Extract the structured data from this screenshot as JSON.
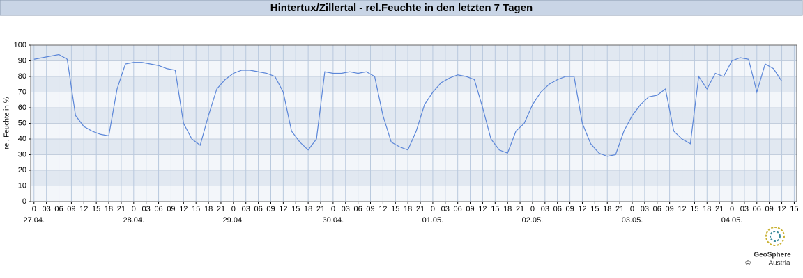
{
  "chart_data": {
    "type": "line",
    "title": "Hintertux/Zillertal - rel.Feuchte in den letzten 7 Tagen",
    "y_label": "rel. Feuchte in %",
    "color": "#5b86d8",
    "grid": true,
    "x": [
      0,
      2,
      4,
      6,
      8,
      10,
      12,
      14,
      16,
      18,
      20,
      22,
      24,
      26,
      28,
      30,
      32,
      34,
      36,
      38,
      40,
      42,
      44,
      46,
      48,
      50,
      52,
      54,
      56,
      58,
      60,
      62,
      64,
      66,
      68,
      70,
      72,
      74,
      76,
      78,
      80,
      82,
      84,
      86,
      88,
      90,
      92,
      94,
      96,
      98,
      100,
      102,
      104,
      106,
      108,
      110,
      112,
      114,
      116,
      118,
      120,
      122,
      124,
      126,
      128,
      130,
      132,
      134,
      136,
      138,
      140,
      142,
      144,
      146,
      148,
      150,
      152,
      154,
      156,
      158,
      160,
      162,
      164,
      166,
      168,
      170,
      172,
      174,
      176,
      178,
      180
    ],
    "values": [
      91,
      92,
      93,
      94,
      91,
      55,
      48,
      45,
      43,
      42,
      72,
      88,
      89,
      89,
      88,
      87,
      85,
      84,
      50,
      40,
      36,
      55,
      72,
      78,
      82,
      84,
      84,
      83,
      82,
      80,
      70,
      45,
      38,
      33,
      40,
      83,
      82,
      82,
      83,
      82,
      83,
      80,
      55,
      38,
      35,
      33,
      45,
      62,
      70,
      76,
      79,
      81,
      80,
      78,
      60,
      40,
      33,
      31,
      45,
      50,
      62,
      70,
      75,
      78,
      80,
      80,
      50,
      37,
      31,
      29,
      30,
      45,
      55,
      62,
      67,
      68,
      72,
      45,
      40,
      37,
      80,
      72,
      82,
      80,
      90,
      92,
      91,
      70,
      88,
      85,
      77
    ],
    "xlim": [
      -0.8,
      183.6
    ],
    "ylim": [
      0,
      100
    ],
    "yticks": [
      0,
      10,
      20,
      30,
      40,
      50,
      60,
      70,
      80,
      90,
      100
    ],
    "xticks": [
      0,
      {
        "value": 3,
        "label": "03"
      },
      {
        "value": 6,
        "label": "06"
      },
      {
        "value": 9,
        "label": "09"
      },
      12,
      15,
      18,
      21,
      {
        "value": 24,
        "label": "0"
      },
      {
        "value": 27,
        "label": "03"
      },
      {
        "value": 30,
        "label": "06"
      },
      {
        "value": 33,
        "label": "09"
      },
      {
        "value": 36,
        "label": "12"
      },
      {
        "value": 39,
        "label": "15"
      },
      {
        "value": 42,
        "label": "18"
      },
      {
        "value": 45,
        "label": "21"
      },
      {
        "value": 48,
        "label": "0"
      },
      {
        "value": 51,
        "label": "03"
      },
      {
        "value": 54,
        "label": "06"
      },
      {
        "value": 57,
        "label": "09"
      },
      {
        "value": 60,
        "label": "12"
      },
      {
        "value": 63,
        "label": "15"
      },
      {
        "value": 66,
        "label": "18"
      },
      {
        "value": 69,
        "label": "21"
      },
      {
        "value": 72,
        "label": "0"
      },
      {
        "value": 75,
        "label": "03"
      },
      {
        "value": 78,
        "label": "06"
      },
      {
        "value": 81,
        "label": "09"
      },
      {
        "value": 84,
        "label": "12"
      },
      {
        "value": 87,
        "label": "15"
      },
      {
        "value": 90,
        "label": "18"
      },
      {
        "value": 93,
        "label": "21"
      },
      {
        "value": 96,
        "label": "0"
      },
      {
        "value": 99,
        "label": "03"
      },
      {
        "value": 102,
        "label": "06"
      },
      {
        "value": 105,
        "label": "09"
      },
      {
        "value": 108,
        "label": "12"
      },
      {
        "value": 111,
        "label": "15"
      },
      {
        "value": 114,
        "label": "18"
      },
      {
        "value": 117,
        "label": "21"
      },
      {
        "value": 120,
        "label": "0"
      },
      {
        "value": 123,
        "label": "03"
      },
      {
        "value": 126,
        "label": "06"
      },
      {
        "value": 129,
        "label": "09"
      },
      {
        "value": 132,
        "label": "12"
      },
      {
        "value": 135,
        "label": "15"
      },
      {
        "value": 138,
        "label": "18"
      },
      {
        "value": 141,
        "label": "21"
      },
      {
        "value": 144,
        "label": "0"
      },
      {
        "value": 147,
        "label": "03"
      },
      {
        "value": 150,
        "label": "06"
      },
      {
        "value": 153,
        "label": "09"
      },
      {
        "value": 156,
        "label": "12"
      },
      {
        "value": 159,
        "label": "15"
      },
      {
        "value": 162,
        "label": "18"
      },
      {
        "value": 165,
        "label": "21"
      },
      {
        "value": 168,
        "label": "0"
      },
      {
        "value": 171,
        "label": "03"
      },
      {
        "value": 174,
        "label": "06"
      },
      {
        "value": 177,
        "label": "09"
      },
      {
        "value": 180,
        "label": "12"
      },
      {
        "value": 183,
        "label": "15"
      }
    ],
    "x_date_labels": [
      {
        "value": 0,
        "label": "27.04."
      },
      {
        "value": 24,
        "label": "28.04."
      },
      {
        "value": 48,
        "label": "29.04."
      },
      {
        "value": 72,
        "label": "30.04."
      },
      {
        "value": 96,
        "label": "01.05."
      },
      {
        "value": 120,
        "label": "02.05."
      },
      {
        "value": 144,
        "label": "03.05."
      },
      {
        "value": 168,
        "label": "04.05."
      }
    ],
    "logo_text": "GeoSphere",
    "logo_subtext": "Austria",
    "copyright": "©"
  }
}
